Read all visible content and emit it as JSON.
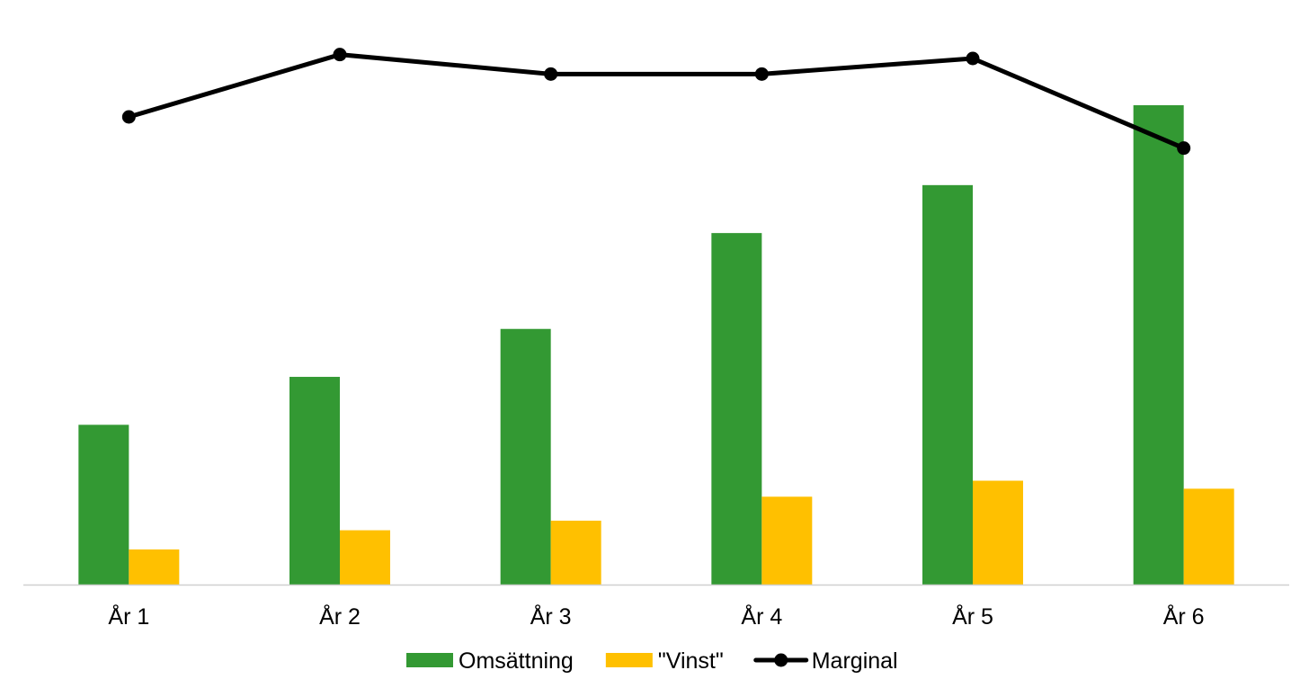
{
  "chart_data": {
    "type": "bar",
    "title": "",
    "xlabel": "",
    "ylabel": "",
    "categories": [
      "År 1",
      "År 2",
      "År 3",
      "År 4",
      "År 5",
      "År 6"
    ],
    "ylim": [
      0,
      600
    ],
    "grid": false,
    "legend_position": "bottom",
    "series": [
      {
        "name": "Omsättning",
        "kind": "bar",
        "color": "#339933",
        "values": [
          200,
          260,
          320,
          440,
          500,
          600
        ]
      },
      {
        "name": "\"Vinst\"",
        "kind": "bar",
        "color": "#FFC000",
        "values": [
          44,
          68,
          80,
          110,
          130,
          120
        ]
      },
      {
        "name": "Marginal",
        "kind": "line",
        "color": "#000000",
        "marker": "circle",
        "secondary_axis": true,
        "ylim": [
          0.1,
          0.25
        ],
        "values": [
          0.22,
          0.236,
          0.231,
          0.231,
          0.235,
          0.212
        ]
      }
    ]
  }
}
